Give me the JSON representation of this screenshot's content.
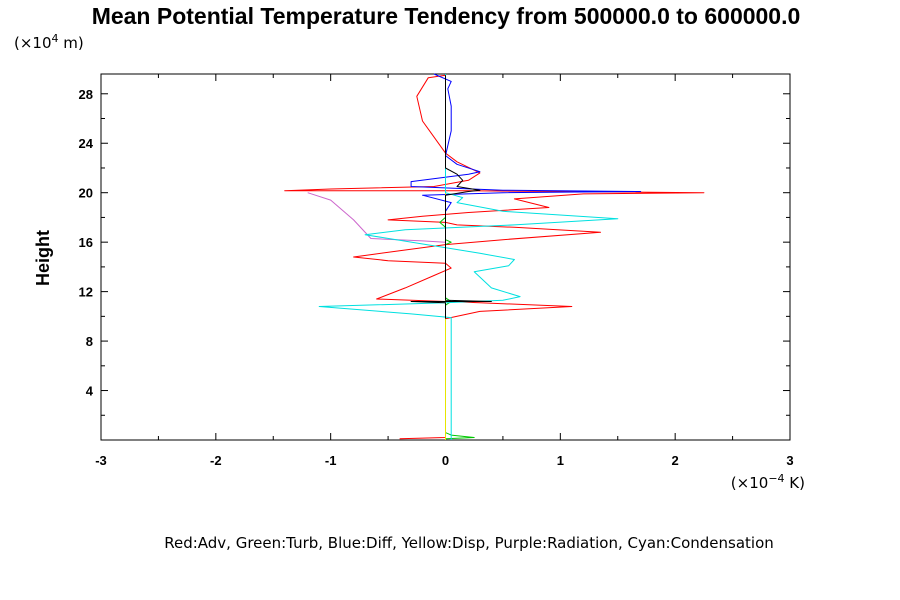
{
  "chart_data": {
    "type": "line",
    "title": "Mean Potential Temperature Tendency from 500000.0 to 600000.0",
    "ylabel": "Height",
    "yunit_prefix": "(×10",
    "yunit_exp": "4",
    "yunit_suffix": " m)",
    "xunit_prefix": "(×10",
    "xunit_exp": "−4",
    "xunit_suffix": " K)",
    "legend": "Red:Adv, Green:Turb, Blue:Diff, Yellow:Disp, Purple:Radiation, Cyan:Condensation",
    "xlim": [
      -3,
      3
    ],
    "ylim": [
      0,
      29.6
    ],
    "xticks": [
      -3,
      -2,
      -1,
      0,
      1,
      2,
      3
    ],
    "xtick_labels": [
      "-3",
      "-2",
      "-1",
      "0",
      "1",
      "2",
      "3"
    ],
    "yticks": [
      4,
      8,
      12,
      16,
      20,
      24,
      28
    ],
    "ytick_labels": [
      "4",
      "8",
      "12",
      "16",
      "20",
      "24",
      "28"
    ],
    "grid": false,
    "series": [
      {
        "name": "Adv",
        "color": "#ff0000",
        "points": [
          [
            -0.4,
            0.1
          ],
          [
            0,
            0.2
          ],
          [
            0,
            9.8
          ],
          [
            0.3,
            10.4
          ],
          [
            1.1,
            10.8
          ],
          [
            0.3,
            11.1
          ],
          [
            0,
            11.2
          ],
          [
            -0.6,
            11.4
          ],
          [
            -0.35,
            12.3
          ],
          [
            -0.1,
            13.3
          ],
          [
            0.05,
            13.9
          ],
          [
            0,
            14.3
          ],
          [
            -0.5,
            14.5
          ],
          [
            -0.8,
            14.8
          ],
          [
            -0.4,
            15.3
          ],
          [
            0,
            15.8
          ],
          [
            0.5,
            16.2
          ],
          [
            1.35,
            16.8
          ],
          [
            0.6,
            17.2
          ],
          [
            0.1,
            17.4
          ],
          [
            0,
            17.6
          ],
          [
            -0.5,
            17.8
          ],
          [
            -0.2,
            18.1
          ],
          [
            0.2,
            18.4
          ],
          [
            0.9,
            18.8
          ],
          [
            0.6,
            19.5
          ],
          [
            1.2,
            19.9
          ],
          [
            2.25,
            20.0
          ],
          [
            1.0,
            20.1
          ],
          [
            0.2,
            20.15
          ],
          [
            -1.4,
            20.15
          ],
          [
            -1.0,
            20.3
          ],
          [
            -0.1,
            20.5
          ],
          [
            0.2,
            21.0
          ],
          [
            0.3,
            21.6
          ],
          [
            0.1,
            22.5
          ],
          [
            0,
            23.2
          ],
          [
            -0.2,
            25.8
          ],
          [
            -0.25,
            27.8
          ],
          [
            -0.15,
            29.3
          ],
          [
            0,
            29.5
          ]
        ]
      },
      {
        "name": "Turb",
        "color": "#00c800",
        "points": [
          [
            0,
            0.1
          ],
          [
            0.25,
            0.2
          ],
          [
            0.05,
            0.4
          ],
          [
            0,
            0.6
          ],
          [
            0,
            10.9
          ],
          [
            0.05,
            11.2
          ],
          [
            0,
            11.5
          ],
          [
            0,
            15.8
          ],
          [
            0.05,
            16.0
          ],
          [
            0,
            16.2
          ],
          [
            0,
            17.2
          ],
          [
            -0.05,
            17.6
          ],
          [
            0,
            18
          ],
          [
            0,
            29.5
          ]
        ]
      },
      {
        "name": "Diff",
        "color": "#0000ff",
        "points": [
          [
            0,
            0.3
          ],
          [
            0,
            18.5
          ],
          [
            0.05,
            19.2
          ],
          [
            -0.2,
            19.8
          ],
          [
            0.5,
            20.0
          ],
          [
            1.7,
            20.1
          ],
          [
            0.5,
            20.2
          ],
          [
            -0.3,
            20.5
          ],
          [
            -0.3,
            20.9
          ],
          [
            0.2,
            21.5
          ],
          [
            0.3,
            21.7
          ],
          [
            0.1,
            22.3
          ],
          [
            0,
            23
          ],
          [
            0.05,
            25
          ],
          [
            0.05,
            27
          ],
          [
            0.02,
            28.4
          ],
          [
            0.05,
            29.0
          ],
          [
            -0.1,
            29.6
          ]
        ]
      },
      {
        "name": "Disp",
        "color": "#e6e600",
        "points": [
          [
            0,
            0
          ],
          [
            0,
            29.5
          ]
        ]
      },
      {
        "name": "Radiation",
        "color": "#cc66cc",
        "points": [
          [
            -1.2,
            20.0
          ],
          [
            -1.0,
            19.4
          ],
          [
            -0.8,
            17.8
          ],
          [
            -0.65,
            16.3
          ],
          [
            -0.2,
            16.1
          ],
          [
            0,
            16.0
          ],
          [
            0,
            15.8
          ]
        ]
      },
      {
        "name": "Condensation",
        "color": "#00e0e0",
        "points": [
          [
            0.05,
            0
          ],
          [
            0.05,
            9.9
          ],
          [
            -0.3,
            10.2
          ],
          [
            -1.1,
            10.8
          ],
          [
            0,
            11.1
          ],
          [
            0.5,
            11.3
          ],
          [
            0.65,
            11.6
          ],
          [
            0.4,
            12.3
          ],
          [
            0.25,
            13.6
          ],
          [
            0.55,
            14.1
          ],
          [
            0.6,
            14.6
          ],
          [
            0.3,
            15.1
          ],
          [
            -0.7,
            16.6
          ],
          [
            -0.35,
            17.0
          ],
          [
            0.6,
            17.4
          ],
          [
            1.5,
            17.9
          ],
          [
            0.5,
            18.5
          ],
          [
            0.1,
            19.2
          ],
          [
            0.15,
            19.6
          ],
          [
            0,
            20
          ],
          [
            0,
            29.6
          ]
        ]
      },
      {
        "name": "",
        "color": "#000000",
        "points": [
          [
            0,
            9.8
          ],
          [
            0,
            11.1
          ],
          [
            -0.3,
            11.2
          ],
          [
            0.4,
            11.2
          ],
          [
            0,
            11.3
          ],
          [
            0,
            19.8
          ],
          [
            0.2,
            20.1
          ],
          [
            0.3,
            20.2
          ],
          [
            0.1,
            20.5
          ],
          [
            0.15,
            21.0
          ],
          [
            0.1,
            21.5
          ],
          [
            0,
            22
          ],
          [
            0,
            29.5
          ]
        ]
      }
    ]
  }
}
